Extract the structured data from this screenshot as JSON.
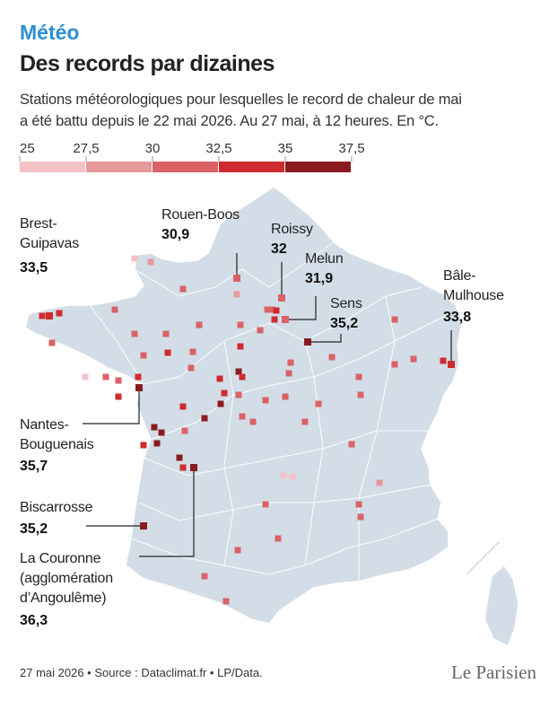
{
  "header": {
    "kicker": "Météo",
    "title": "Des records par dizaines",
    "subtitle": [
      "Stations météorologiques pour lesquelles le record de chaleur de mai",
      "a été battu depuis le 22 mai 2026. Au 27 mai, à 12 heures. En °C."
    ]
  },
  "legend": {
    "ticks": [
      25,
      {
        "value": 27.5,
        "label": "27,5"
      },
      30,
      {
        "value": 32.5,
        "label": "32,5"
      },
      35,
      {
        "value": 37.5,
        "label": "37,5"
      }
    ],
    "colors": [
      "#f3c3c5",
      "#e6999b",
      "#da6266",
      "#cf2b2f",
      "#8a1b1f"
    ]
  },
  "stations": [
    {
      "name": [
        "Brest-",
        "Guipavas"
      ],
      "value": 33.5,
      "value_label": "33,5"
    },
    {
      "name": [
        "Rouen-Boos"
      ],
      "value": 30.9,
      "value_label": "30,9"
    },
    {
      "name": [
        "Roissy"
      ],
      "value": 32,
      "value_label": "32"
    },
    {
      "name": [
        "Melun"
      ],
      "value": 31.9,
      "value_label": "31,9"
    },
    {
      "name": [
        "Sens"
      ],
      "value": 35.2,
      "value_label": "35,2"
    },
    {
      "name": [
        "Bâle-",
        "Mulhouse"
      ],
      "value": 33.8,
      "value_label": "33,8"
    },
    {
      "name": [
        "Nantes-",
        "Bouguenais"
      ],
      "value": 35.7,
      "value_label": "35,7"
    },
    {
      "name": [
        "Biscarrosse"
      ],
      "value": 35.2,
      "value_label": "35,2"
    },
    {
      "name": [
        "La Couronne",
        "(agglomération",
        "d’Angoulême)"
      ],
      "value": 36.3,
      "value_label": "36,3"
    }
  ],
  "footer": {
    "source": "27 mai 2026 • Source : Dataclimat.fr • LP/Data.",
    "logo": "Le Parisien"
  }
}
